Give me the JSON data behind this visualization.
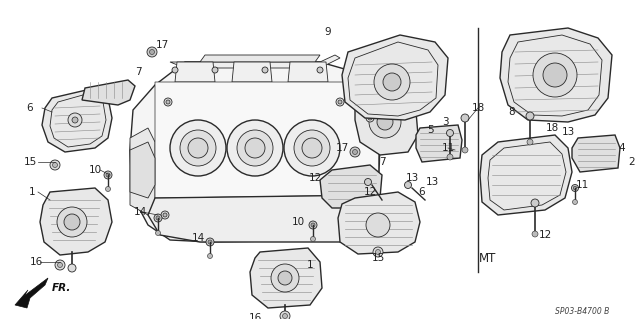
{
  "bg_color": "#ffffff",
  "line_color": "#2a2a2a",
  "diagram_code": "SP03-B4700 B",
  "mt_label": "MT",
  "fr_label": "FR.",
  "figsize": [
    6.4,
    3.19
  ],
  "dpi": 100,
  "label_color": "#222222",
  "label_fontsize": 7.5
}
